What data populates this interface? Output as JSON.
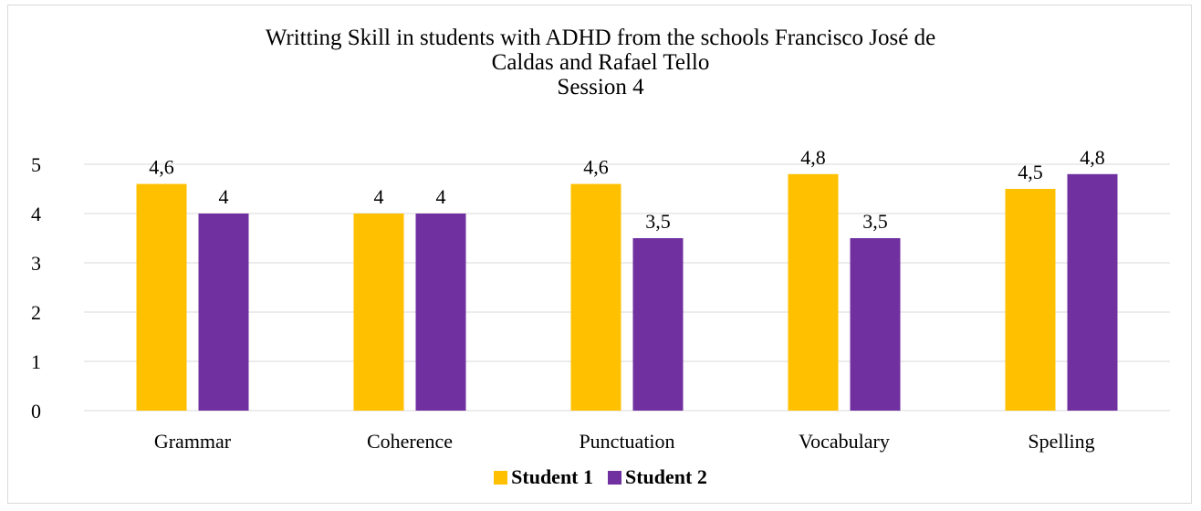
{
  "chart_data": {
    "type": "bar",
    "title_lines": [
      "Writting Skill in students with ADHD from the schools Francisco José de",
      "Caldas and Rafael Tello",
      "Session 4"
    ],
    "categories": [
      "Grammar",
      "Coherence",
      "Punctuation",
      "Vocabulary",
      "Spelling"
    ],
    "series": [
      {
        "name": "Student 1",
        "color": "#FFC000",
        "values": [
          4.6,
          4,
          4.6,
          4.8,
          4.5
        ],
        "labels": [
          "4,6",
          "4",
          "4,6",
          "4,8",
          "4,5"
        ]
      },
      {
        "name": "Student 2",
        "color": "#7030A0",
        "values": [
          4,
          4,
          3.5,
          3.5,
          4.8
        ],
        "labels": [
          "4",
          "4",
          "3,5",
          "3,5",
          "4,8"
        ]
      }
    ],
    "ylim": [
      0,
      5
    ],
    "yticks": [
      0,
      1,
      2,
      3,
      4,
      5
    ],
    "xlabel": "",
    "ylabel": "",
    "grid": true,
    "legend_position": "bottom"
  }
}
